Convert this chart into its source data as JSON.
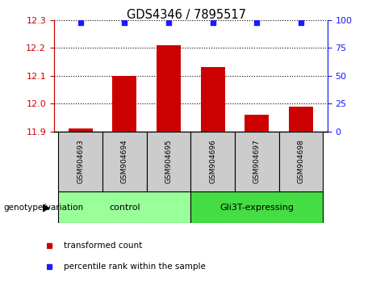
{
  "title": "GDS4346 / 7895517",
  "samples": [
    "GSM904693",
    "GSM904694",
    "GSM904695",
    "GSM904696",
    "GSM904697",
    "GSM904698"
  ],
  "bar_values": [
    11.91,
    12.1,
    12.21,
    12.13,
    11.96,
    11.99
  ],
  "ylim_left": [
    11.9,
    12.3
  ],
  "ylim_right": [
    0,
    100
  ],
  "yticks_left": [
    11.9,
    12.0,
    12.1,
    12.2,
    12.3
  ],
  "yticks_right": [
    0,
    25,
    50,
    75,
    100
  ],
  "bar_color": "#cc0000",
  "dot_color": "#1a1aff",
  "bar_base": 11.9,
  "group_spans": [
    [
      0,
      2,
      "control",
      "#99ff99"
    ],
    [
      3,
      5,
      "Gli3T-expressing",
      "#44dd44"
    ]
  ],
  "group_label": "genotype/variation",
  "legend_items": [
    {
      "color": "#cc0000",
      "label": "transformed count"
    },
    {
      "color": "#1a1aff",
      "label": "percentile rank within the sample"
    }
  ],
  "tick_color_left": "#cc0000",
  "tick_color_right": "#1a1aff",
  "sample_box_color": "#cccccc",
  "bar_width": 0.55
}
